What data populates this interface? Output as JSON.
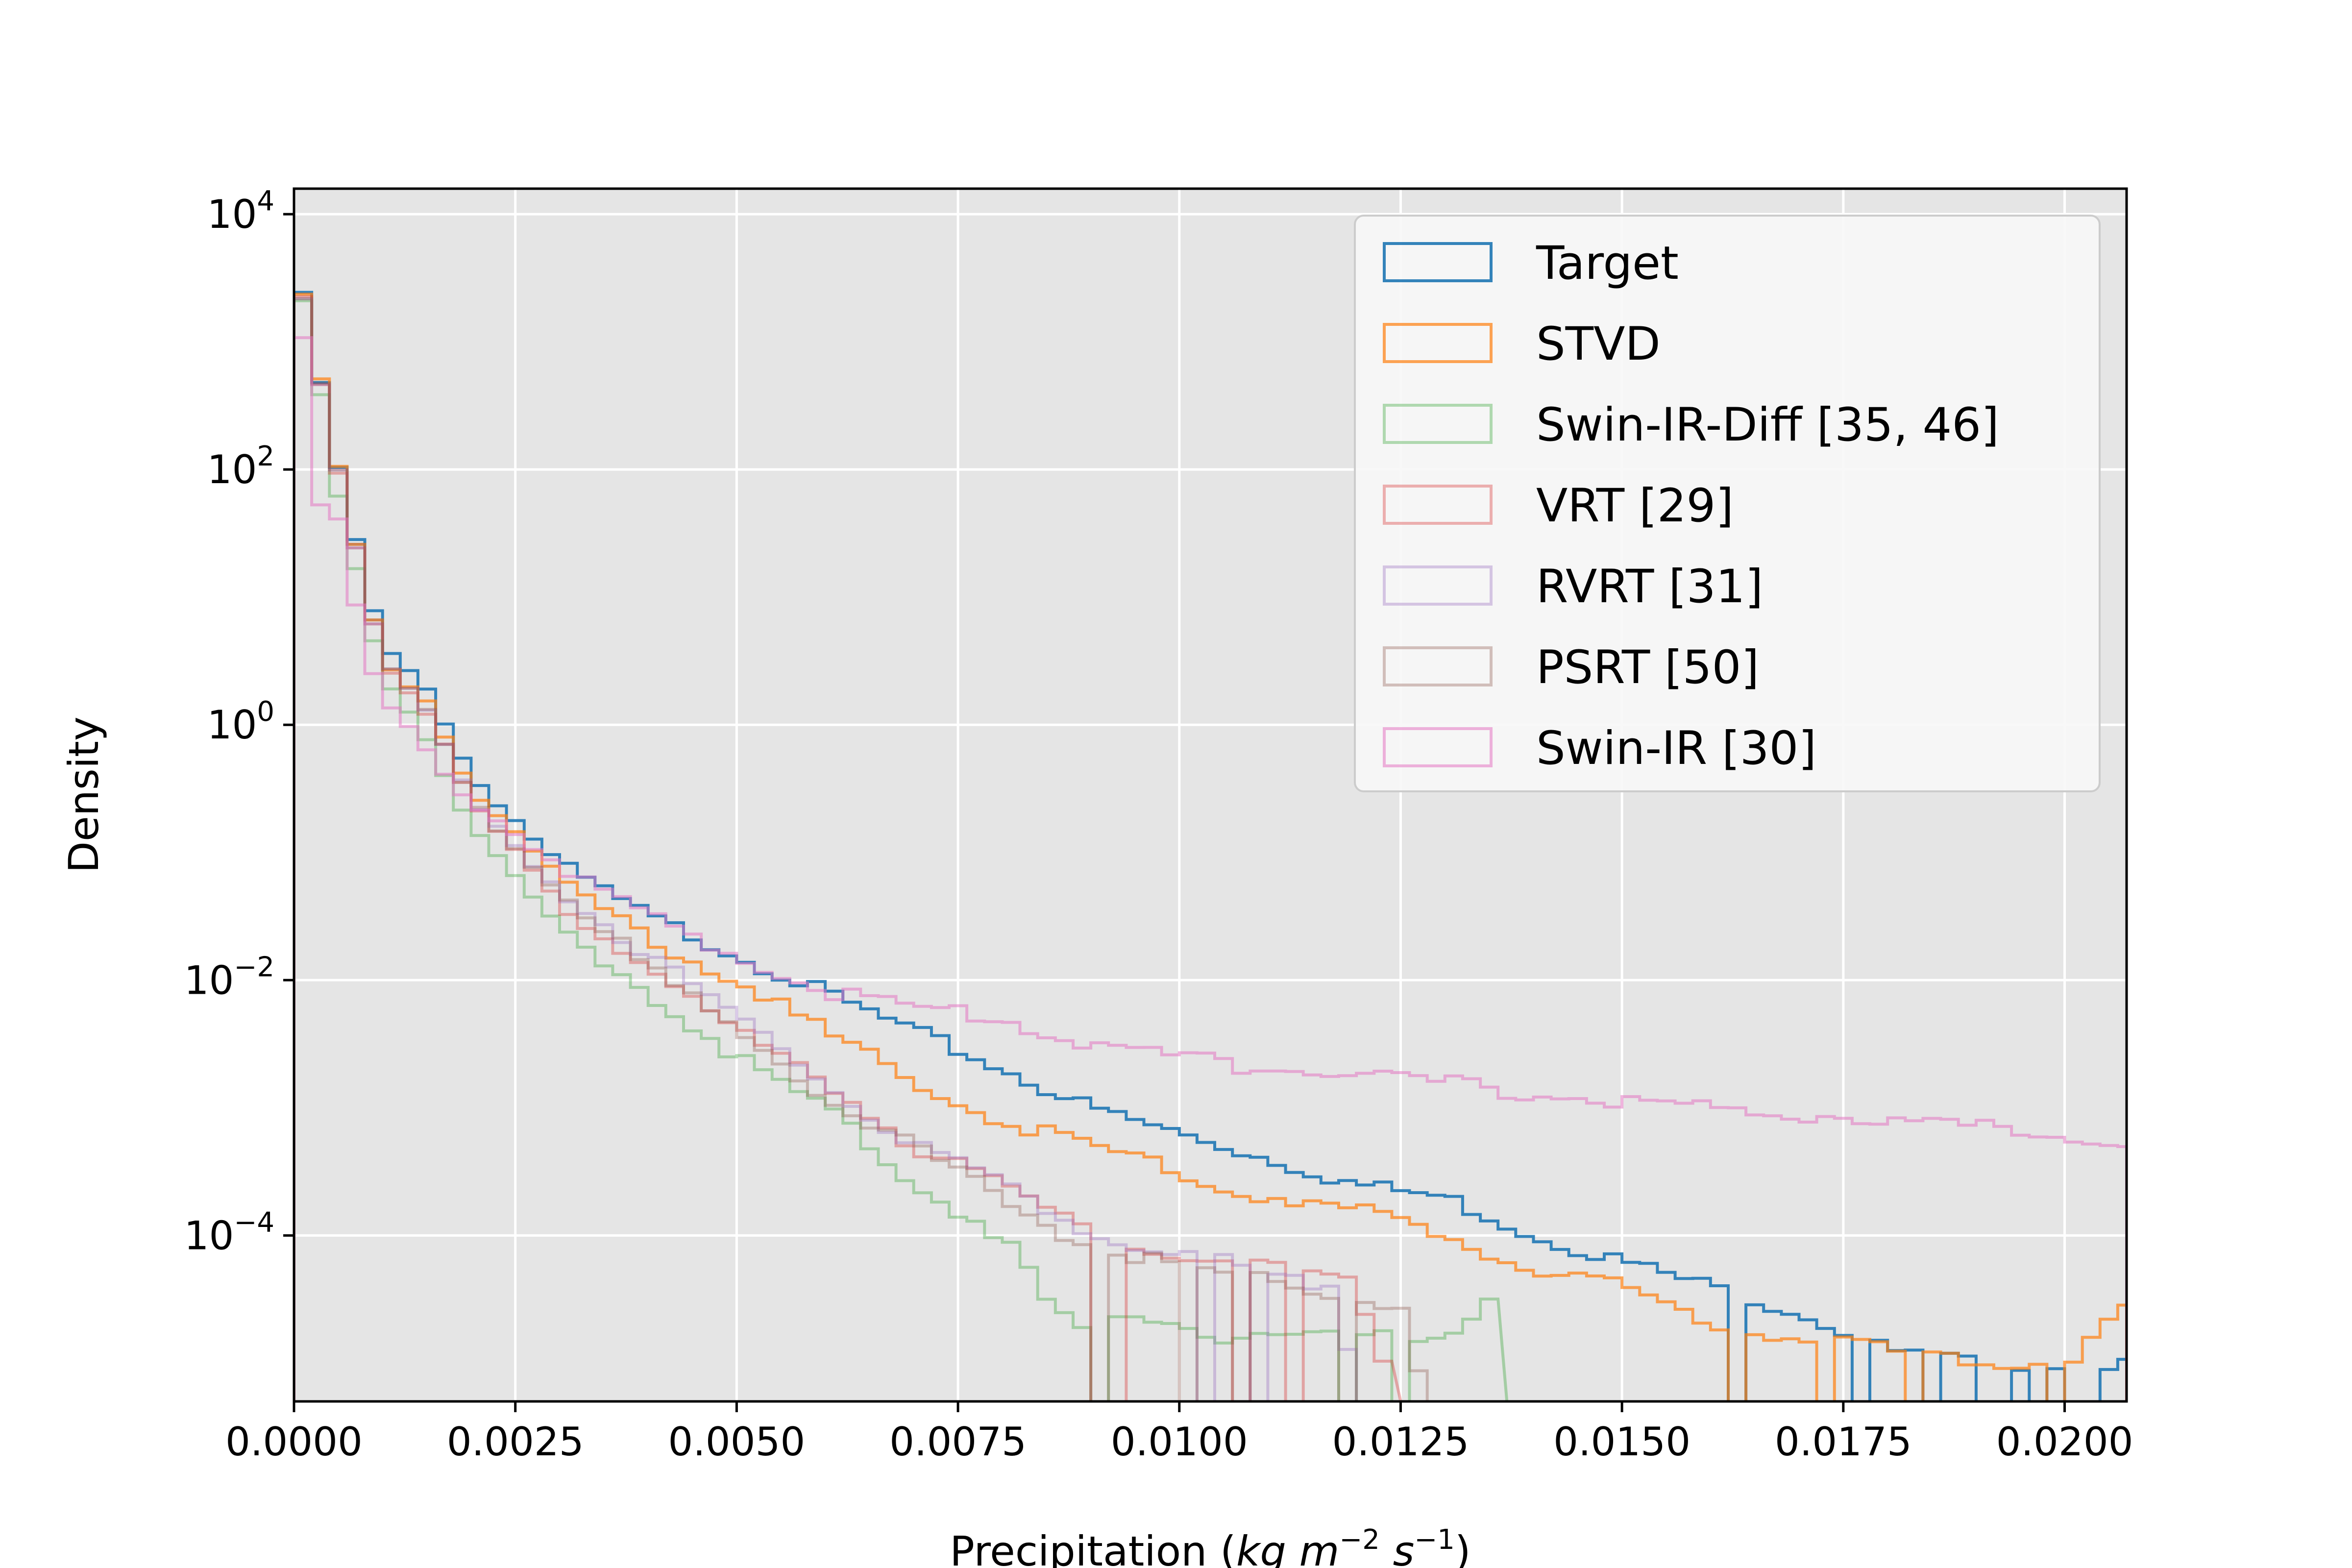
{
  "chart_data": {
    "type": "histogram-step",
    "xlabel": "Precipitation",
    "xlabel_units": {
      "base": "kg m",
      "exp1": "−2",
      "mid": "s",
      "exp2": "−1"
    },
    "ylabel": "Density",
    "xlim": [
      0,
      0.0207
    ],
    "ylog_range": [
      -5.3,
      4.2
    ],
    "x_ticks": [
      {
        "value": 0.0,
        "label": "0.0000"
      },
      {
        "value": 0.0025,
        "label": "0.0025"
      },
      {
        "value": 0.005,
        "label": "0.0050"
      },
      {
        "value": 0.0075,
        "label": "0.0075"
      },
      {
        "value": 0.01,
        "label": "0.0100"
      },
      {
        "value": 0.0125,
        "label": "0.0125"
      },
      {
        "value": 0.015,
        "label": "0.0150"
      },
      {
        "value": 0.0175,
        "label": "0.0175"
      },
      {
        "value": 0.02,
        "label": "0.0200"
      }
    ],
    "y_ticks": [
      {
        "exp": 4,
        "base": "10",
        "sup": "4"
      },
      {
        "exp": 2,
        "base": "10",
        "sup": "2"
      },
      {
        "exp": 0,
        "base": "10",
        "sup": "0"
      },
      {
        "exp": -2,
        "base": "10",
        "sup": "−2"
      },
      {
        "exp": -4,
        "base": "10",
        "sup": "−4"
      }
    ],
    "grid": true,
    "legend_position": "top-right",
    "series": [
      {
        "name": "Target",
        "color": "#1f77b4",
        "opacity": 0.9,
        "points": [
          [
            0,
            3.7
          ],
          [
            0.0005,
            2.0
          ],
          [
            0.001,
            0.6
          ],
          [
            0.0015,
            0.3
          ],
          [
            0.002,
            -0.4
          ],
          [
            0.003,
            -1.1
          ],
          [
            0.004,
            -1.5
          ],
          [
            0.005,
            -1.8
          ],
          [
            0.006,
            -2.1
          ],
          [
            0.007,
            -2.4
          ],
          [
            0.008,
            -2.7
          ],
          [
            0.009,
            -3.0
          ],
          [
            0.01,
            -3.2
          ],
          [
            0.011,
            -3.4
          ],
          [
            0.012,
            -3.6
          ],
          [
            0.013,
            -3.7
          ],
          [
            0.014,
            -4.0
          ],
          [
            0.015,
            -4.2
          ],
          [
            0.016,
            -4.4
          ],
          [
            0.017,
            -4.6
          ],
          [
            0.018,
            -4.9
          ],
          [
            0.019,
            -5.0
          ],
          [
            0.02,
            -5.0
          ],
          [
            0.0207,
            -5.0
          ]
        ],
        "gaps": [
          0.0163,
          0.0176,
          0.0184,
          0.0189,
          0.0192,
          0.0196,
          0.0199,
          0.0203
        ]
      },
      {
        "name": "STVD",
        "color": "#ff7f0e",
        "opacity": 0.7,
        "points": [
          [
            0,
            3.7
          ],
          [
            0.0005,
            2.0
          ],
          [
            0.001,
            0.5
          ],
          [
            0.0015,
            0.2
          ],
          [
            0.002,
            -0.5
          ],
          [
            0.003,
            -1.2
          ],
          [
            0.004,
            -1.7
          ],
          [
            0.005,
            -2.0
          ],
          [
            0.006,
            -2.4
          ],
          [
            0.007,
            -2.8
          ],
          [
            0.008,
            -3.1
          ],
          [
            0.009,
            -3.3
          ],
          [
            0.01,
            -3.5
          ],
          [
            0.011,
            -3.7
          ],
          [
            0.012,
            -3.8
          ],
          [
            0.013,
            -4.0
          ],
          [
            0.014,
            -4.3
          ],
          [
            0.015,
            -4.4
          ],
          [
            0.016,
            -4.7
          ],
          [
            0.017,
            -4.8
          ],
          [
            0.018,
            -4.9
          ],
          [
            0.019,
            -5.0
          ],
          [
            0.02,
            -5.0
          ],
          [
            0.0207,
            -4.6
          ]
        ],
        "gaps": [
          0.0162,
          0.0171,
          0.0182,
          0.0198
        ]
      },
      {
        "name": "Swin-IR-Diff [35, 46]",
        "color": "#2ca02c",
        "opacity": 0.35,
        "points": [
          [
            0,
            3.7
          ],
          [
            0.0005,
            1.8
          ],
          [
            0.001,
            0.4
          ],
          [
            0.0015,
            -0.1
          ],
          [
            0.002,
            -0.8
          ],
          [
            0.003,
            -1.6
          ],
          [
            0.004,
            -2.1
          ],
          [
            0.005,
            -2.6
          ],
          [
            0.006,
            -3.0
          ],
          [
            0.007,
            -3.6
          ],
          [
            0.008,
            -4.0
          ],
          [
            0.0085,
            -4.5
          ],
          [
            0.009,
            -4.8
          ],
          [
            0.0095,
            -4.6
          ],
          [
            0.0105,
            -4.8
          ],
          [
            0.012,
            -4.8
          ],
          [
            0.013,
            -4.8
          ],
          [
            0.0136,
            -4.4
          ],
          [
            0.0137,
            -5.3
          ]
        ],
        "gaps": [
          0.009,
          0.0118,
          0.0124
        ]
      },
      {
        "name": "VRT [29]",
        "color": "#d62728",
        "opacity": 0.35,
        "points": [
          [
            0,
            3.7
          ],
          [
            0.0005,
            2.0
          ],
          [
            0.001,
            0.5
          ],
          [
            0.0015,
            0.1
          ],
          [
            0.002,
            -0.6
          ],
          [
            0.003,
            -1.4
          ],
          [
            0.004,
            -1.9
          ],
          [
            0.005,
            -2.4
          ],
          [
            0.006,
            -2.8
          ],
          [
            0.007,
            -3.3
          ],
          [
            0.008,
            -3.6
          ],
          [
            0.009,
            -4.0
          ],
          [
            0.0105,
            -4.2
          ],
          [
            0.0115,
            -4.3
          ],
          [
            0.012,
            -4.4
          ],
          [
            0.0125,
            -5.3
          ]
        ],
        "gaps": [
          0.009,
          0.0091,
          0.0105,
          0.0112
        ]
      },
      {
        "name": "RVRT [31]",
        "color": "#9467bd",
        "opacity": 0.35,
        "points": [
          [
            0,
            3.7
          ],
          [
            0.0005,
            2.0
          ],
          [
            0.001,
            0.5
          ],
          [
            0.0015,
            0.1
          ],
          [
            0.002,
            -0.6
          ],
          [
            0.003,
            -1.3
          ],
          [
            0.004,
            -1.8
          ],
          [
            0.005,
            -2.3
          ],
          [
            0.006,
            -2.8
          ],
          [
            0.007,
            -3.3
          ],
          [
            0.008,
            -3.6
          ],
          [
            0.009,
            -4.0
          ],
          [
            0.0105,
            -4.2
          ],
          [
            0.011,
            -4.3
          ],
          [
            0.0118,
            -4.4
          ],
          [
            0.012,
            -5.3
          ]
        ],
        "gaps": [
          0.0102,
          0.0108
        ]
      },
      {
        "name": "PSRT [50]",
        "color": "#8c564b",
        "opacity": 0.35,
        "points": [
          [
            0,
            3.7
          ],
          [
            0.0005,
            2.0
          ],
          [
            0.001,
            0.5
          ],
          [
            0.0015,
            0.1
          ],
          [
            0.002,
            -0.6
          ],
          [
            0.003,
            -1.3
          ],
          [
            0.004,
            -1.9
          ],
          [
            0.005,
            -2.4
          ],
          [
            0.006,
            -2.9
          ],
          [
            0.007,
            -3.3
          ],
          [
            0.008,
            -3.7
          ],
          [
            0.009,
            -4.1
          ],
          [
            0.0105,
            -4.3
          ],
          [
            0.0115,
            -4.4
          ],
          [
            0.012,
            -4.5
          ],
          [
            0.0125,
            -4.6
          ],
          [
            0.0128,
            -5.3
          ]
        ],
        "gaps": [
          0.009,
          0.0101,
          0.0106,
          0.0117
        ]
      },
      {
        "name": "Swin-IR [30]",
        "color": "#e377c2",
        "opacity": 0.55,
        "points": [
          [
            0,
            3.7
          ],
          [
            0.0003,
            1.7
          ],
          [
            0.0005,
            1.6
          ],
          [
            0.0008,
            0.6
          ],
          [
            0.001,
            0.2
          ],
          [
            0.0015,
            -0.2
          ],
          [
            0.002,
            -0.6
          ],
          [
            0.003,
            -1.1
          ],
          [
            0.004,
            -1.5
          ],
          [
            0.005,
            -1.8
          ],
          [
            0.006,
            -2.1
          ],
          [
            0.007,
            -2.2
          ],
          [
            0.008,
            -2.3
          ],
          [
            0.009,
            -2.5
          ],
          [
            0.01,
            -2.6
          ],
          [
            0.011,
            -2.7
          ],
          [
            0.012,
            -2.75
          ],
          [
            0.013,
            -2.8
          ],
          [
            0.014,
            -2.9
          ],
          [
            0.015,
            -2.95
          ],
          [
            0.016,
            -3.0
          ],
          [
            0.017,
            -3.05
          ],
          [
            0.018,
            -3.1
          ],
          [
            0.019,
            -3.15
          ],
          [
            0.02,
            -3.2
          ],
          [
            0.0207,
            -3.3
          ]
        ],
        "gaps": []
      }
    ]
  }
}
